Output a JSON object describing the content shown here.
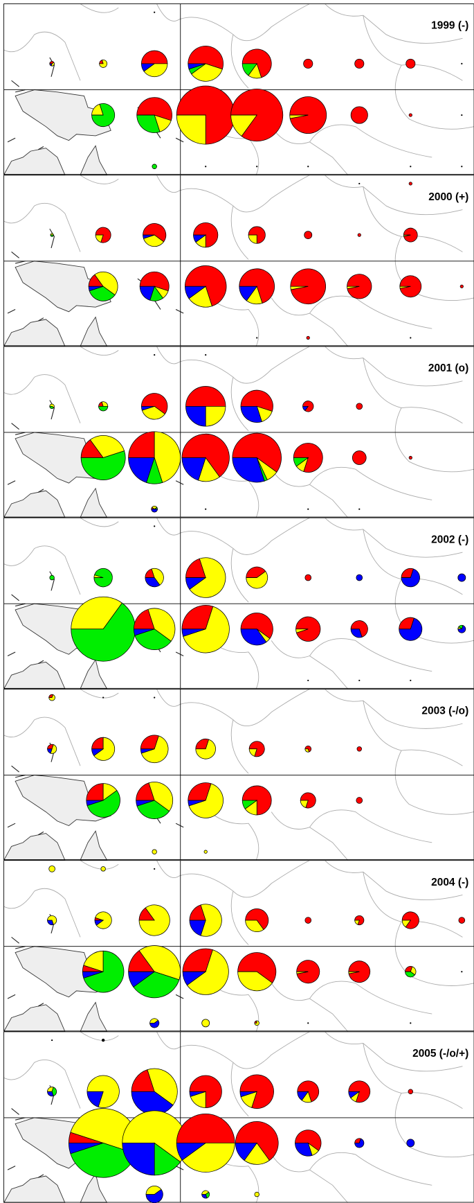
{
  "colors": [
    "#ff0000",
    "#ffff00",
    "#00ee00",
    "#0000ff"
  ],
  "panels": [
    {
      "label": "1999 (-)",
      "rows": [
        [
          null,
          null,
          [
            1,
            0,
            0,
            0,
            0
          ],
          null,
          null,
          null,
          null,
          null,
          null
        ],
        [
          [
            3,
            40,
            40,
            0,
            20
          ],
          [
            5,
            20,
            80,
            0,
            0
          ],
          [
            17,
            50,
            40,
            0,
            10
          ],
          [
            23,
            55,
            35,
            5,
            5
          ],
          [
            19,
            70,
            15,
            15,
            0
          ],
          [
            6,
            100,
            0,
            0,
            0
          ],
          [
            6,
            100,
            0,
            0,
            0
          ],
          [
            6,
            100,
            0,
            0,
            0
          ],
          [
            1,
            0,
            0,
            0,
            0
          ]
        ],
        [
          null,
          [
            15,
            0,
            20,
            80,
            0
          ],
          [
            23,
            55,
            15,
            30,
            0
          ],
          [
            38,
            75,
            25,
            0,
            0
          ],
          [
            34,
            85,
            15,
            0,
            0
          ],
          [
            24,
            97,
            3,
            0,
            0
          ],
          [
            11,
            100,
            0,
            0,
            0
          ],
          [
            2,
            100,
            0,
            0,
            0
          ],
          [
            1,
            0,
            0,
            0,
            0
          ]
        ],
        [
          null,
          null,
          [
            3,
            0,
            0,
            100,
            0
          ],
          [
            1,
            0,
            0,
            0,
            0
          ],
          [
            1,
            0,
            0,
            0,
            0
          ],
          [
            1,
            0,
            0,
            0,
            0
          ],
          null,
          [
            1,
            0,
            0,
            0,
            0
          ],
          [
            1,
            0,
            0,
            0,
            0
          ]
        ]
      ]
    },
    {
      "label": "2000 (+)",
      "rows": [
        [
          null,
          null,
          null,
          null,
          null,
          null,
          [
            1,
            0,
            0,
            0,
            0
          ],
          [
            2,
            100,
            0,
            0,
            0
          ],
          null
        ],
        [
          [
            2,
            0,
            50,
            50,
            0
          ],
          [
            10,
            80,
            20,
            0,
            0
          ],
          [
            15,
            60,
            35,
            0,
            5
          ],
          [
            16,
            75,
            15,
            0,
            10
          ],
          [
            11,
            75,
            25,
            0,
            0
          ],
          [
            5,
            100,
            0,
            0,
            0
          ],
          [
            2,
            100,
            0,
            0,
            0
          ],
          [
            9,
            97,
            3,
            0,
            0
          ],
          null
        ],
        [
          null,
          [
            19,
            15,
            45,
            35,
            5
          ],
          [
            19,
            55,
            10,
            15,
            20
          ],
          [
            27,
            70,
            20,
            0,
            10
          ],
          [
            23,
            70,
            15,
            0,
            15
          ],
          [
            23,
            97,
            3,
            0,
            0
          ],
          [
            16,
            97,
            3,
            0,
            0
          ],
          [
            14,
            97,
            3,
            0,
            0
          ],
          [
            2,
            100,
            0,
            0,
            0
          ]
        ],
        [
          null,
          null,
          null,
          null,
          [
            1,
            0,
            0,
            0,
            0
          ],
          [
            2,
            100,
            0,
            0,
            0
          ],
          null,
          [
            1,
            0,
            0,
            0,
            0
          ],
          null
        ]
      ]
    },
    {
      "label": "2001 (o)",
      "rows": [
        [
          null,
          null,
          [
            1,
            0,
            0,
            0,
            0
          ],
          [
            1,
            0,
            0,
            0,
            0
          ],
          null,
          null,
          null,
          null,
          null
        ],
        [
          [
            3,
            0,
            60,
            40,
            0
          ],
          [
            6,
            20,
            30,
            50,
            0
          ],
          [
            17,
            60,
            35,
            0,
            5
          ],
          [
            26,
            50,
            25,
            0,
            25
          ],
          [
            21,
            55,
            15,
            0,
            30
          ],
          [
            7,
            85,
            0,
            0,
            15
          ],
          [
            4,
            100,
            0,
            0,
            0
          ],
          null,
          null
        ],
        [
          null,
          [
            29,
            15,
            30,
            55,
            0
          ],
          [
            34,
            25,
            45,
            10,
            20
          ],
          [
            31,
            65,
            15,
            0,
            20
          ],
          [
            32,
            60,
            8,
            2,
            30
          ],
          [
            19,
            80,
            10,
            10,
            0
          ],
          [
            9,
            100,
            0,
            0,
            0
          ],
          [
            2,
            100,
            0,
            0,
            0
          ],
          null
        ],
        [
          null,
          null,
          [
            4,
            10,
            30,
            10,
            50
          ],
          [
            1,
            0,
            0,
            0,
            0
          ],
          null,
          [
            1,
            0,
            0,
            0,
            0
          ],
          [
            1,
            0,
            0,
            0,
            0
          ],
          null,
          null
        ]
      ]
    },
    {
      "label": "2002 (-)",
      "rows": [
        [
          null,
          null,
          [
            1,
            0,
            0,
            0,
            0
          ],
          null,
          null,
          null,
          null,
          null,
          null
        ],
        [
          [
            3,
            0,
            0,
            100,
            0
          ],
          [
            12,
            0,
            5,
            95,
            0
          ],
          [
            12,
            20,
            45,
            0,
            35
          ],
          [
            26,
            20,
            70,
            0,
            10
          ],
          [
            14,
            40,
            60,
            0,
            0
          ],
          [
            4,
            100,
            0,
            0,
            0
          ],
          [
            4,
            0,
            0,
            0,
            100
          ],
          [
            12,
            30,
            0,
            0,
            70
          ],
          [
            5,
            0,
            0,
            0,
            100
          ]
        ],
        [
          null,
          [
            42,
            0,
            35,
            65,
            0
          ],
          [
            27,
            20,
            40,
            35,
            5
          ],
          [
            31,
            30,
            65,
            0,
            5
          ],
          [
            21,
            60,
            5,
            0,
            35
          ],
          [
            16,
            95,
            5,
            0,
            0
          ],
          [
            11,
            70,
            0,
            0,
            30
          ],
          [
            15,
            30,
            0,
            0,
            70
          ],
          [
            5,
            0,
            10,
            20,
            70
          ]
        ],
        [
          null,
          null,
          null,
          null,
          null,
          [
            1,
            0,
            0,
            0,
            0
          ],
          [
            1,
            0,
            0,
            0,
            0
          ],
          [
            1,
            0,
            0,
            0,
            0
          ],
          null
        ]
      ]
    },
    {
      "label": "2003 (-/o)",
      "rows": [
        [
          [
            4,
            30,
            70,
            0,
            0
          ],
          [
            1,
            0,
            0,
            0,
            0
          ],
          [
            1,
            0,
            0,
            0,
            0
          ],
          null,
          null,
          null,
          null,
          null,
          null
        ],
        [
          [
            6,
            30,
            50,
            0,
            20
          ],
          [
            15,
            25,
            65,
            0,
            10
          ],
          [
            18,
            30,
            65,
            0,
            5
          ],
          [
            13,
            30,
            70,
            0,
            0
          ],
          [
            10,
            80,
            20,
            0,
            0
          ],
          [
            4,
            70,
            30,
            0,
            0
          ],
          [
            3,
            100,
            0,
            0,
            0
          ],
          null,
          null
        ],
        [
          null,
          [
            22,
            25,
            15,
            55,
            5
          ],
          [
            24,
            20,
            40,
            35,
            5
          ],
          [
            23,
            30,
            65,
            0,
            5
          ],
          [
            19,
            75,
            15,
            10,
            0
          ],
          [
            10,
            80,
            20,
            0,
            0
          ],
          [
            4,
            100,
            0,
            0,
            0
          ],
          null,
          null
        ],
        [
          null,
          null,
          [
            3,
            0,
            100,
            0,
            0
          ],
          [
            2,
            0,
            100,
            0,
            0
          ],
          null,
          null,
          null,
          null,
          null
        ]
      ]
    },
    {
      "label": "2004 (-)",
      "rows": [
        [
          [
            4,
            0,
            100,
            0,
            0
          ],
          [
            3,
            0,
            100,
            0,
            0
          ],
          [
            1,
            0,
            0,
            0,
            0
          ],
          null,
          null,
          null,
          null,
          null,
          null
        ],
        [
          [
            6,
            0,
            70,
            0,
            30
          ],
          [
            11,
            5,
            85,
            0,
            10
          ],
          [
            20,
            15,
            85,
            0,
            0
          ],
          [
            21,
            20,
            60,
            0,
            20
          ],
          [
            15,
            65,
            35,
            0,
            0
          ],
          [
            4,
            100,
            0,
            0,
            0
          ],
          [
            6,
            80,
            20,
            0,
            0
          ],
          [
            11,
            85,
            15,
            0,
            0
          ],
          [
            4,
            100,
            0,
            0,
            0
          ]
        ],
        [
          null,
          [
            27,
            5,
            20,
            70,
            5
          ],
          [
            34,
            15,
            40,
            35,
            10
          ],
          [
            30,
            30,
            60,
            0,
            10
          ],
          [
            25,
            60,
            40,
            0,
            0
          ],
          [
            15,
            97,
            3,
            0,
            0
          ],
          [
            14,
            97,
            3,
            0,
            0
          ],
          [
            7,
            30,
            30,
            40,
            0
          ],
          [
            1,
            0,
            0,
            0,
            0
          ]
        ],
        [
          null,
          null,
          [
            6,
            0,
            40,
            0,
            60
          ],
          [
            5,
            0,
            100,
            0,
            0
          ],
          [
            3,
            20,
            80,
            0,
            0
          ],
          [
            1,
            0,
            0,
            0,
            0
          ],
          null,
          [
            1,
            0,
            0,
            0,
            0
          ],
          null
        ]
      ]
    },
    {
      "label": "2005 (-/o/+)",
      "rows": [
        [
          [
            1,
            0,
            0,
            0,
            0
          ],
          [
            2,
            0,
            0,
            0,
            0
          ],
          null,
          null,
          null,
          null,
          null,
          null,
          null
        ],
        [
          [
            6,
            0,
            30,
            40,
            30
          ],
          [
            21,
            0,
            80,
            0,
            20
          ],
          [
            30,
            20,
            40,
            0,
            40
          ],
          [
            21,
            75,
            20,
            0,
            5
          ],
          [
            22,
            80,
            15,
            0,
            5
          ],
          [
            14,
            70,
            15,
            0,
            15
          ],
          [
            14,
            80,
            10,
            0,
            10
          ],
          [
            3,
            100,
            0,
            0,
            0
          ],
          null
        ],
        [
          null,
          [
            45,
            5,
            50,
            40,
            5
          ],
          [
            42,
            0,
            60,
            15,
            25
          ],
          [
            38,
            50,
            40,
            0,
            10
          ],
          [
            28,
            65,
            20,
            0,
            15
          ],
          [
            17,
            60,
            10,
            0,
            30
          ],
          [
            6,
            30,
            0,
            0,
            70
          ],
          [
            5,
            0,
            0,
            0,
            100
          ],
          null
        ],
        [
          null,
          null,
          [
            11,
            0,
            40,
            0,
            60
          ],
          [
            5,
            0,
            40,
            30,
            30
          ],
          [
            3,
            0,
            100,
            0,
            0
          ],
          null,
          null,
          null,
          null
        ]
      ]
    }
  ]
}
